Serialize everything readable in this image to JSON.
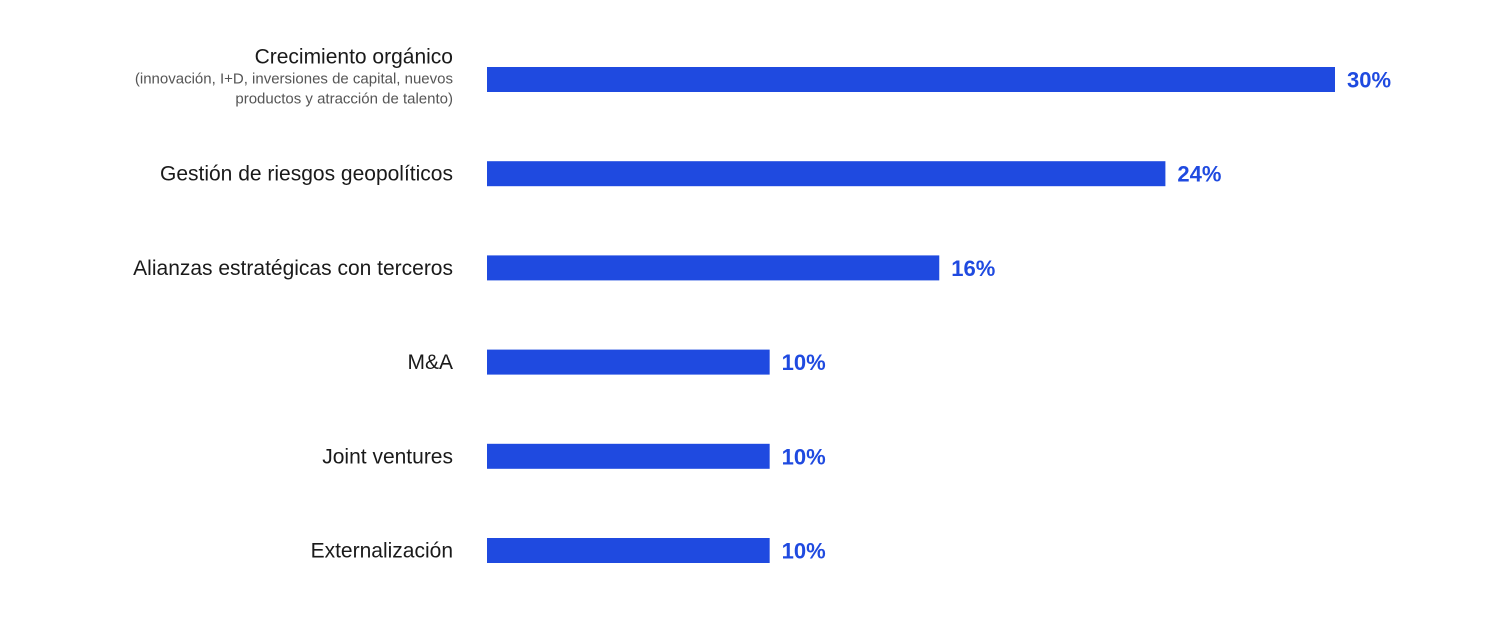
{
  "chart_data": {
    "type": "bar",
    "orientation": "horizontal",
    "categories": [
      "Crecimiento orgánico",
      "Gestión de riesgos geopolíticos",
      "Alianzas estratégicas con terceros",
      "M&A",
      "Joint ventures",
      "Externalización"
    ],
    "category_notes": [
      [
        "(innovación, I+D, inversiones de capital, nuevos",
        "productos y atracción de talento)"
      ],
      [],
      [],
      [],
      [],
      []
    ],
    "values": [
      30,
      24,
      16,
      10,
      10,
      10
    ],
    "value_labels": [
      "30%",
      "24%",
      "16%",
      "10%",
      "10%",
      "10%"
    ],
    "unit": "%",
    "xlim": [
      0,
      30
    ],
    "grid": false,
    "bar_color": "#1f4ae0",
    "value_label_color": "#1f4ae0"
  }
}
